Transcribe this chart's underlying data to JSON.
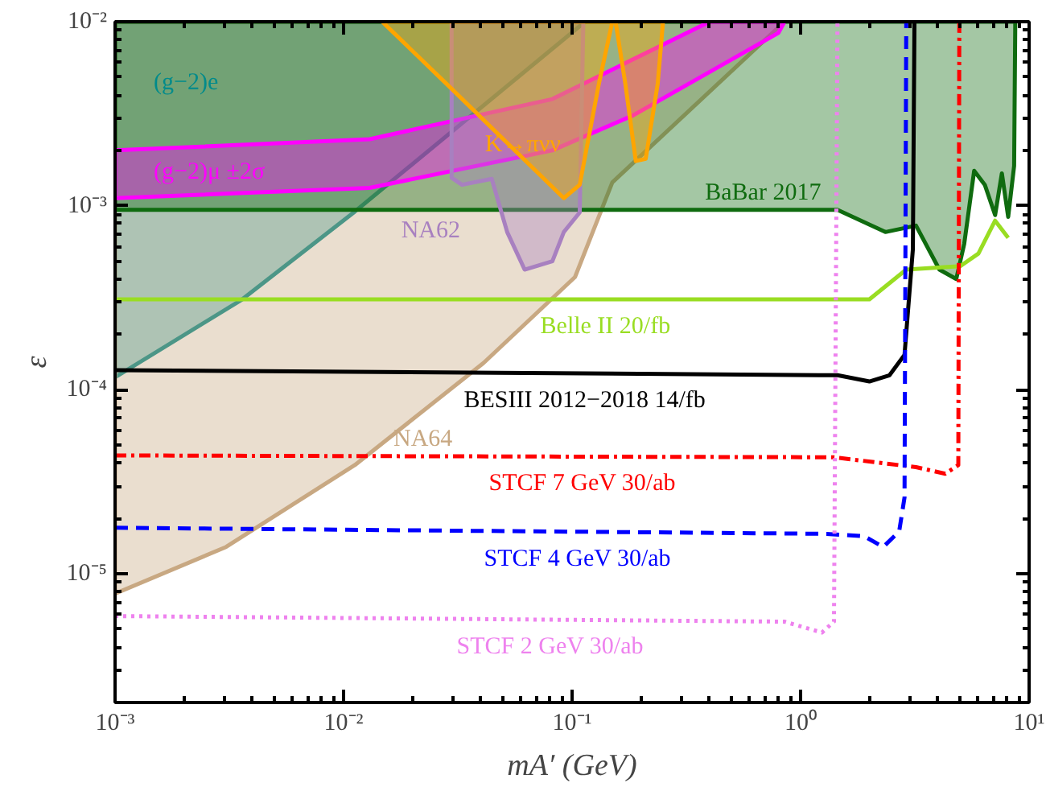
{
  "chart_data": {
    "type": "area",
    "xlabel": "mA′ (GeV)",
    "ylabel": "ε",
    "log": "xy",
    "xlim": [
      0.001,
      10
    ],
    "ylim": [
      2e-06,
      0.01
    ],
    "xticks": [
      {
        "value": 0.001,
        "label": "10⁻³"
      },
      {
        "value": 0.01,
        "label": "10⁻²"
      },
      {
        "value": 0.1,
        "label": "10⁻¹"
      },
      {
        "value": 1,
        "label": "10⁰"
      },
      {
        "value": 10,
        "label": "10¹"
      }
    ],
    "yticks": [
      {
        "value": 1e-05,
        "label": "10⁻⁵"
      },
      {
        "value": 0.0001,
        "label": "10⁻⁴"
      },
      {
        "value": 0.001,
        "label": "10⁻³"
      },
      {
        "value": 0.01,
        "label": "10⁻²"
      }
    ],
    "series": [
      {
        "name": "(g−2)e",
        "color": "#008b8b",
        "x": [
          0.001,
          0.001,
          0.0036,
          0.0112,
          0.114
        ],
        "values": [
          0.01,
          0.000117,
          0.00031,
          0.00093,
          0.01
        ]
      },
      {
        "name": "NA64",
        "color": "#c8a882",
        "x": [
          0.0112,
          0.041,
          0.103,
          0.15,
          0.85,
          0.001,
          0.001,
          0.00306
        ],
        "values": [
          3.9e-05,
          0.00014,
          0.00041,
          0.00134,
          0.01,
          0.01,
          7.8e-06,
          1.4e-05
        ]
      },
      {
        "name": "BaBar 2017",
        "color": "#0f6b0f",
        "x": [
          2.35,
          3.2,
          4.05,
          4.8,
          5.2,
          5.75,
          6.4,
          7.1,
          7.6,
          8.1,
          8.6,
          8.7,
          0.001,
          0.001,
          1.45
        ],
        "values": [
          0.00072,
          0.00078,
          0.00045,
          0.0004,
          0.00062,
          0.00155,
          0.0013,
          0.00089,
          0.0015,
          0.00087,
          0.00165,
          0.01,
          0.01,
          0.00095,
          0.00095
        ]
      },
      {
        "name": "(g−2)μ ±2σ",
        "color": "#ff00ff",
        "x": [
          0.001,
          0.013,
          0.082,
          0.185,
          0.8,
          0.85,
          0.4,
          0.178,
          0.082,
          0.013,
          0.001
        ],
        "values": [
          0.0011,
          0.00125,
          0.002,
          0.0031,
          0.0087,
          0.01,
          0.01,
          0.0061,
          0.0038,
          0.0023,
          0.002
        ]
      },
      {
        "name": "NA62",
        "color": "#a880c0",
        "x": [
          0.062,
          0.082,
          0.092,
          0.108,
          0.112,
          0.0297,
          0.0297,
          0.033,
          0.0445,
          0.052
        ],
        "values": [
          0.00045,
          0.0005,
          0.00072,
          0.00092,
          0.01,
          0.01,
          0.00142,
          0.0013,
          0.0014,
          0.00072
        ]
      },
      {
        "name": "K→πνν",
        "color": "#ffa500",
        "x": [
          0.0282,
          0.092,
          0.108,
          0.131,
          0.15,
          0.01476
        ],
        "values": [
          0.0046,
          0.0011,
          0.0013,
          0.0046,
          0.01,
          0.01
        ]
      },
      {
        "color": "#ffa500",
        "x": [
          0.155,
          0.171,
          0.19,
          0.21,
          0.237,
          0.25
        ],
        "values": [
          0.01,
          0.0046,
          0.00175,
          0.0018,
          0.0046,
          0.01
        ]
      },
      {
        "name": "Belle II 20/fb",
        "type": "line",
        "color": "#99dd22",
        "line_style": "solid",
        "x": [
          0.001,
          2.0,
          2.9,
          5.0,
          6.0,
          7.1,
          8.1
        ],
        "values": [
          0.00031,
          0.00031,
          0.00045,
          0.00047,
          0.00055,
          0.00083,
          0.00067
        ]
      },
      {
        "name": "BESIII 2012−2018 14/fb",
        "type": "line",
        "color": "#000000",
        "line_style": "solid",
        "x": [
          0.001,
          1.45,
          2.0,
          2.45,
          2.85,
          3.1,
          3.15
        ],
        "values": [
          0.000128,
          0.00012,
          0.000111,
          0.00012,
          0.000155,
          0.00058,
          0.01
        ]
      },
      {
        "name": "STCF 7 GeV 30/ab",
        "type": "line",
        "color": "#ff0000",
        "line_style": "dashdot",
        "x": [
          0.001,
          1.4,
          3.2,
          4.3,
          4.9,
          4.95
        ],
        "values": [
          4.4e-05,
          4.3e-05,
          3.8e-05,
          3.5e-05,
          3.9e-05,
          0.01
        ]
      },
      {
        "name": "STCF 4 GeV 30/ab",
        "type": "line",
        "color": "#0000ff",
        "line_style": "dashed",
        "x": [
          0.001,
          1.3,
          1.9,
          2.3,
          2.7,
          2.85,
          2.9
        ],
        "values": [
          1.78e-05,
          1.65e-05,
          1.6e-05,
          1.4e-05,
          1.7e-05,
          2.6e-05,
          0.01
        ]
      },
      {
        "name": "STCF 2 GeV 30/ab",
        "type": "line",
        "color": "#ee82ee",
        "line_style": "dotted",
        "x": [
          0.001,
          0.85,
          1.24,
          1.4,
          1.45
        ],
        "values": [
          5.9e-06,
          5.5e-06,
          4.8e-06,
          5.5e-06,
          0.01
        ]
      }
    ]
  }
}
